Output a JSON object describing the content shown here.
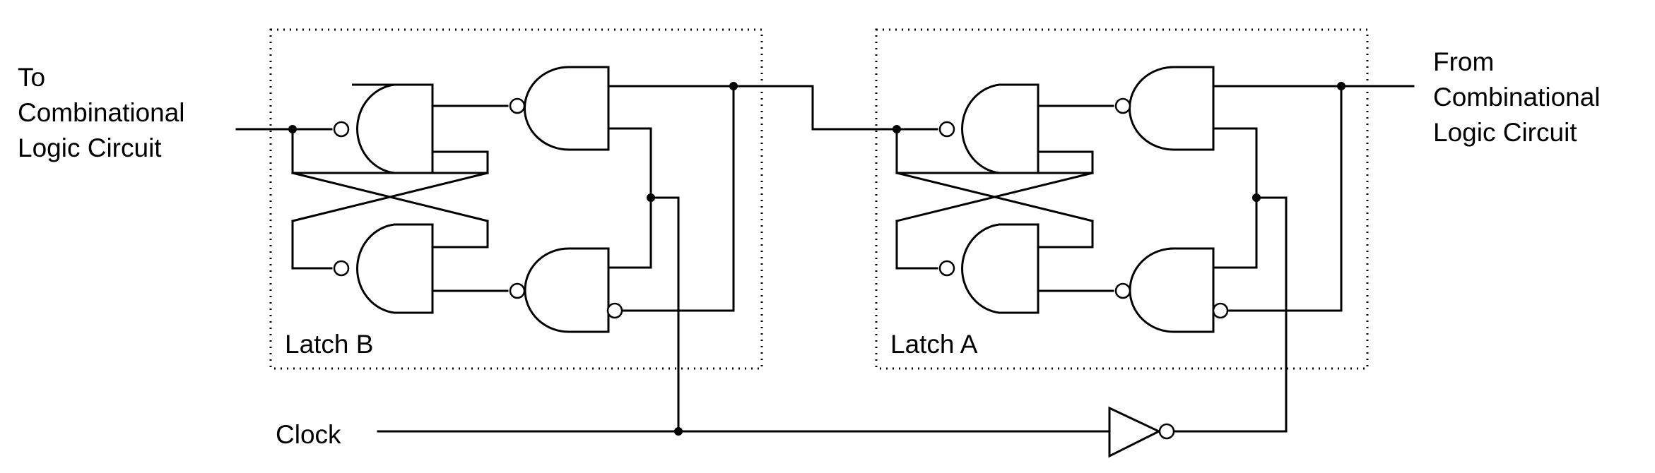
{
  "labels": {
    "input_to": [
      "To",
      "Combinational",
      "Logic Circuit"
    ],
    "output_from": [
      "From",
      "Combinational",
      "Logic Circuit"
    ],
    "latch_b": "Latch B",
    "latch_a": "Latch A",
    "clock": "Clock"
  }
}
